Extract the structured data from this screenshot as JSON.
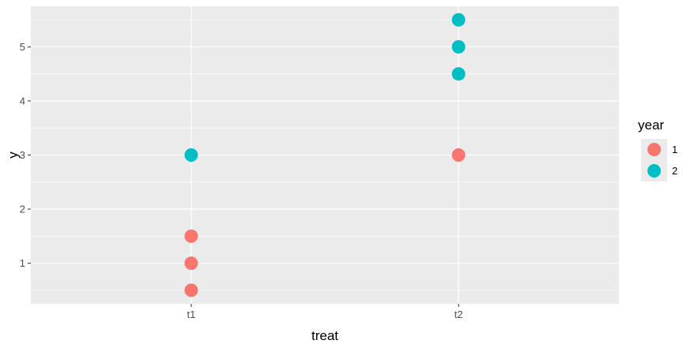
{
  "chart_data": {
    "type": "scatter",
    "title": "",
    "xlabel": "treat",
    "ylabel": "y",
    "categories": [
      "t1",
      "t2"
    ],
    "y_ticks": [
      1,
      2,
      3,
      4,
      5
    ],
    "y_tick_labels": [
      "1",
      "2",
      "3",
      "4",
      "5"
    ],
    "ylim": [
      0.25,
      5.75
    ],
    "grid": true,
    "legend": {
      "title": "year",
      "position": "right",
      "entries": [
        {
          "label": "1",
          "color": "#F8766D"
        },
        {
          "label": "2",
          "color": "#00BFC4"
        }
      ]
    },
    "series": [
      {
        "name": "1",
        "color": "#F8766D",
        "points": [
          {
            "x": "t1",
            "y": 0.5
          },
          {
            "x": "t1",
            "y": 1.0
          },
          {
            "x": "t1",
            "y": 1.5
          },
          {
            "x": "t2",
            "y": 3.0
          }
        ]
      },
      {
        "name": "2",
        "color": "#00BFC4",
        "points": [
          {
            "x": "t1",
            "y": 3.0
          },
          {
            "x": "t2",
            "y": 4.5
          },
          {
            "x": "t2",
            "y": 5.0
          },
          {
            "x": "t2",
            "y": 5.5
          }
        ]
      }
    ]
  }
}
